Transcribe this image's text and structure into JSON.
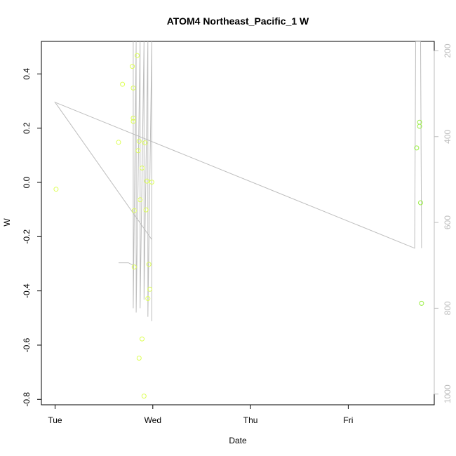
{
  "chart_data": {
    "type": "scatter",
    "title": "ATOM4 Northeast_Pacific_1 W",
    "xlabel": "Date",
    "ylabel": "W",
    "x_ticks": [
      "Tue",
      "Wed",
      "Thu",
      "Fri"
    ],
    "x_tick_values": [
      0,
      1,
      2,
      3
    ],
    "xlim": [
      -0.14,
      3.88
    ],
    "ylim": [
      -0.82,
      0.52
    ],
    "y_ticks": [
      0.4,
      0.2,
      0.0,
      -0.2,
      -0.4,
      -0.6,
      -0.8
    ],
    "y_tick_labels": [
      "0.4",
      "0.2",
      "0.0",
      "-0.2",
      "-0.4",
      "-0.6",
      "-0.8"
    ],
    "y2_ticks": [
      200,
      400,
      600,
      800,
      1000
    ],
    "y2lim": [
      1025,
      178
    ],
    "grid": false,
    "colors": {
      "points_early": "#ddff55",
      "points_late": "#99ee44",
      "line": "#bdbdbd",
      "secondary_axis": "#bdbdbd"
    },
    "series": [
      {
        "points": [
          [
            0.01,
            -0.025
          ],
          [
            0.65,
            0.148
          ],
          [
            0.69,
            0.362
          ],
          [
            0.79,
            0.428
          ],
          [
            0.8,
            0.348
          ],
          [
            0.8,
            0.237
          ],
          [
            0.8,
            0.225
          ],
          [
            0.81,
            -0.104
          ],
          [
            0.81,
            -0.312
          ],
          [
            0.84,
            0.468
          ],
          [
            0.85,
            0.117
          ],
          [
            0.86,
            0.152
          ],
          [
            0.87,
            -0.064
          ],
          [
            0.86,
            -0.648
          ],
          [
            0.89,
            -0.577
          ],
          [
            0.89,
            0.053
          ],
          [
            0.91,
            -0.788
          ],
          [
            0.92,
            0.146
          ],
          [
            0.93,
            -0.101
          ],
          [
            0.94,
            0.005
          ],
          [
            0.95,
            -0.428
          ],
          [
            0.96,
            -0.302
          ],
          [
            0.97,
            -0.394
          ],
          [
            0.99,
            0.001
          ],
          [
            3.7,
            0.127
          ],
          [
            3.73,
            0.207
          ],
          [
            3.73,
            0.222
          ],
          [
            3.74,
            -0.075
          ],
          [
            3.75,
            -0.446
          ]
        ]
      },
      {
        "line": [
          [
            0.65,
            694
          ],
          [
            0.75,
            694
          ],
          [
            0.8,
            700
          ],
          [
            0.8,
            178
          ],
          [
            0.8,
            800
          ],
          [
            0.83,
            178
          ],
          [
            0.83,
            810
          ],
          [
            0.87,
            178
          ],
          [
            0.87,
            800
          ],
          [
            0.91,
            178
          ],
          [
            0.91,
            780
          ],
          [
            0.95,
            178
          ],
          [
            0.95,
            820
          ],
          [
            0.99,
            178
          ],
          [
            0.99,
            830
          ],
          [
            0.99,
            640
          ],
          [
            0.0,
            320
          ],
          [
            3.68,
            660
          ],
          [
            3.69,
            178
          ],
          [
            3.74,
            178
          ],
          [
            3.75,
            660
          ]
        ]
      }
    ]
  }
}
